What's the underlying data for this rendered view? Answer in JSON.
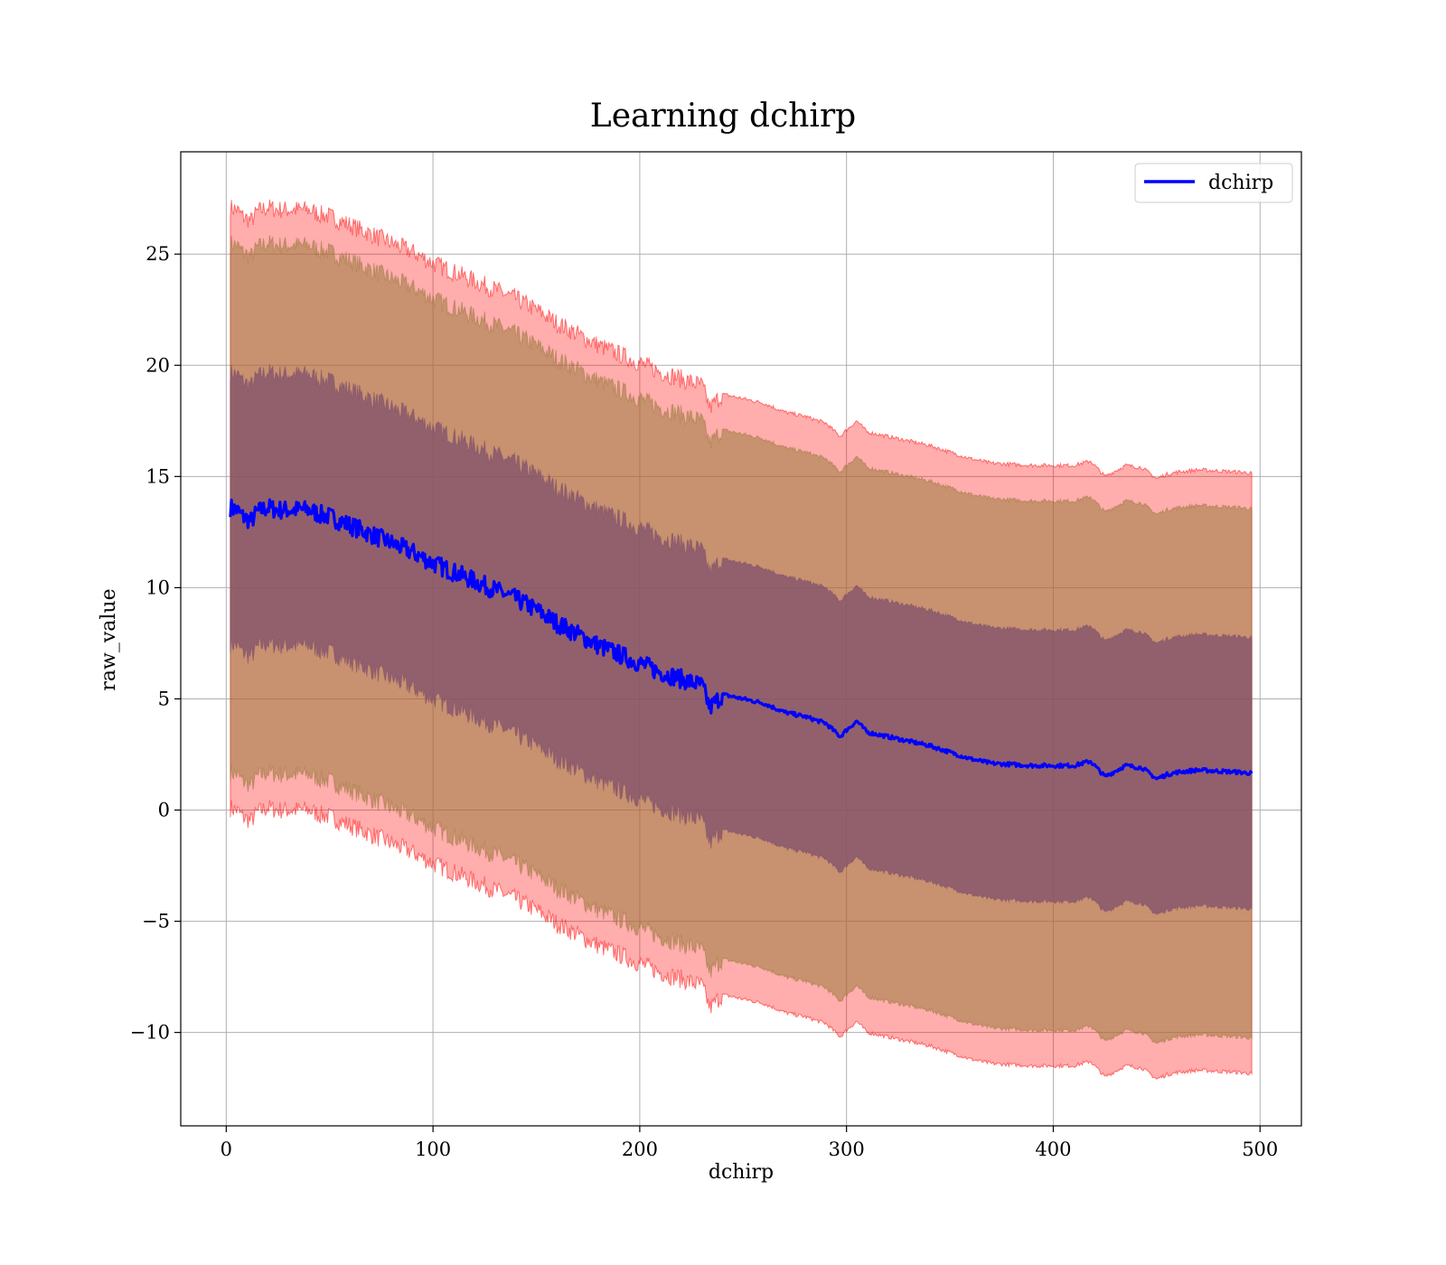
{
  "chart_data": {
    "type": "line",
    "title": "Learning dchirp",
    "xlabel": "dchirp",
    "ylabel": "raw_value",
    "xlim": [
      -22,
      520
    ],
    "ylim": [
      -14.2,
      29.6
    ],
    "xticks": [
      0,
      100,
      200,
      300,
      400,
      500
    ],
    "yticks": [
      -10,
      -5,
      0,
      5,
      10,
      15,
      20,
      25
    ],
    "ytick_labels": [
      "−10",
      "−5",
      "0",
      "5",
      "10",
      "15",
      "20",
      "25"
    ],
    "grid": true,
    "legend": {
      "placement": "top-right",
      "entries": [
        "dchirp"
      ]
    },
    "colors": {
      "mean_line": "#0000ff",
      "band_outer": "#ff0000",
      "band_middle": "#9a7a3c",
      "band_inner": "#7d4d6b"
    },
    "series": [
      {
        "name": "dchirp",
        "x": [
          2,
          5,
          8,
          12,
          15,
          20,
          25,
          30,
          35,
          40,
          45,
          50,
          55,
          60,
          70,
          80,
          90,
          100,
          110,
          120,
          130,
          140,
          150,
          160,
          170,
          180,
          190,
          200,
          210,
          220,
          230,
          234,
          240,
          250,
          260,
          270,
          280,
          290,
          297,
          300,
          305,
          310,
          320,
          330,
          340,
          350,
          360,
          370,
          380,
          390,
          400,
          410,
          418,
          425,
          435,
          443,
          450,
          455,
          460,
          470,
          480,
          490,
          496
        ],
        "mean": [
          13.6,
          13.5,
          13.2,
          13.0,
          13.4,
          13.6,
          13.5,
          13.5,
          13.5,
          13.5,
          13.3,
          13.2,
          13.0,
          12.8,
          12.4,
          12.0,
          11.6,
          11.1,
          10.7,
          10.3,
          9.9,
          9.5,
          9.0,
          8.4,
          7.9,
          7.4,
          7.0,
          6.6,
          6.2,
          5.9,
          5.6,
          4.6,
          5.2,
          5.0,
          4.8,
          4.4,
          4.2,
          3.9,
          3.3,
          3.6,
          4.0,
          3.5,
          3.3,
          3.1,
          2.9,
          2.6,
          2.3,
          2.1,
          2.05,
          2.0,
          2.0,
          2.0,
          2.2,
          1.5,
          2.0,
          1.9,
          1.4,
          1.6,
          1.7,
          1.8,
          1.75,
          1.7,
          1.65
        ],
        "bands": [
          {
            "offset": 13.5,
            "color": "band_outer"
          },
          {
            "offset": 11.9,
            "color": "band_middle"
          },
          {
            "offset": 6.1,
            "color": "band_inner"
          }
        ]
      }
    ]
  }
}
